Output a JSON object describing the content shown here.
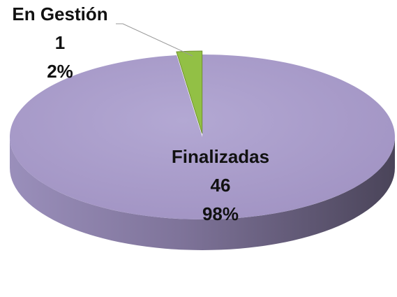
{
  "chart_data": {
    "type": "pie3d",
    "categories": [
      "Finalizadas",
      "En Gestión"
    ],
    "values": [
      46,
      1
    ],
    "percent_labels": [
      "98%",
      "2%"
    ],
    "colors": [
      "#a99ccb",
      "#92c045"
    ]
  }
}
